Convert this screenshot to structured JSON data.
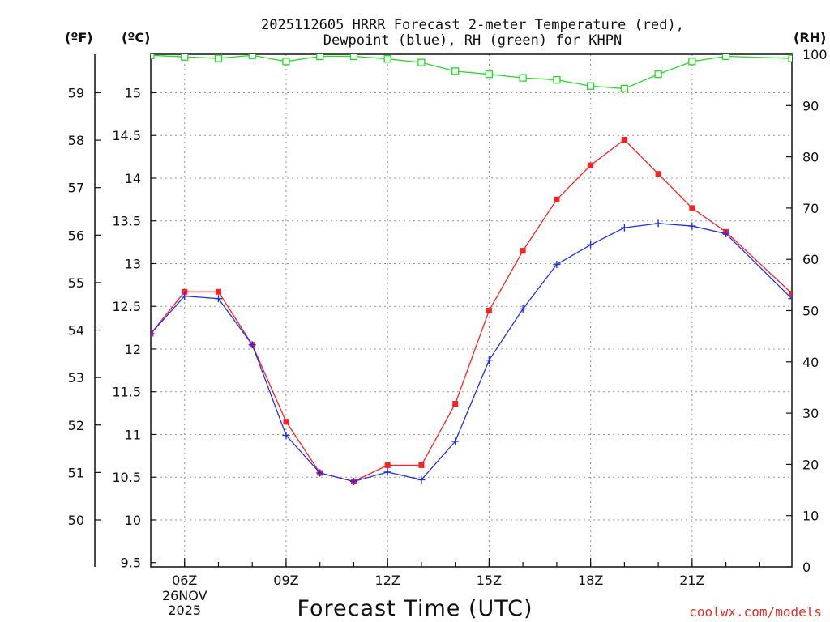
{
  "chart_data": {
    "type": "line",
    "title": [
      "2025112605 HRRR Forecast 2-meter Temperature (red),",
      "Dewpoint (blue), RH (green) for KHPN"
    ],
    "xlabel": "Forecast Time (UTC)",
    "units": {
      "left_f": "(ºF)",
      "left_c": "(ºC)",
      "right_rh": "(RH)"
    },
    "credit": "coolwx.com/models",
    "x_range": [
      5.0,
      23.95
    ],
    "x": [
      5,
      6,
      7,
      8,
      9,
      10,
      11,
      12,
      13,
      14,
      15,
      16,
      17,
      18,
      19,
      20,
      21,
      22,
      23.95
    ],
    "x_ticks": [
      {
        "hour": 6,
        "label": "06Z",
        "sub": [
          "26NOV",
          "2025"
        ]
      },
      {
        "hour": 9,
        "label": "09Z",
        "sub": []
      },
      {
        "hour": 12,
        "label": "12Z",
        "sub": []
      },
      {
        "hour": 15,
        "label": "15Z",
        "sub": []
      },
      {
        "hour": 18,
        "label": "18Z",
        "sub": []
      },
      {
        "hour": 21,
        "label": "21Z",
        "sub": []
      }
    ],
    "celsius_axis": {
      "range": [
        9.45,
        15.45
      ],
      "ticks": [
        9.5,
        10,
        10.5,
        11,
        11.5,
        12,
        12.5,
        13,
        13.5,
        14,
        14.5,
        15
      ],
      "tick_labels": [
        "9.5",
        "10",
        "10.5",
        "11",
        "11.5",
        "12",
        "12.5",
        "13",
        "13.5",
        "14",
        "14.5",
        "15"
      ]
    },
    "fahrenheit_axis": {
      "ticks": [
        50,
        51,
        52,
        53,
        54,
        55,
        56,
        57,
        58,
        59
      ],
      "tick_labels": [
        "50",
        "51",
        "52",
        "53",
        "54",
        "55",
        "56",
        "57",
        "58",
        "59"
      ]
    },
    "rh_axis": {
      "range": [
        0,
        100
      ],
      "ticks": [
        0,
        10,
        20,
        30,
        40,
        50,
        60,
        70,
        80,
        90,
        100
      ],
      "tick_labels": [
        "0",
        "10",
        "20",
        "30",
        "40",
        "50",
        "60",
        "70",
        "80",
        "90",
        "100"
      ]
    },
    "series": [
      {
        "name": "Temperature",
        "color": "#ff2020",
        "marker": "square-filled",
        "values": [
          12.18,
          12.67,
          12.67,
          12.05,
          11.15,
          10.55,
          10.45,
          10.64,
          10.64,
          11.36,
          12.45,
          13.15,
          13.75,
          14.15,
          14.45,
          14.05,
          13.65,
          13.37,
          12.65
        ]
      },
      {
        "name": "Dewpoint",
        "color": "#2030f0",
        "marker": "plus",
        "values": [
          12.18,
          12.62,
          12.59,
          12.05,
          10.99,
          10.55,
          10.45,
          10.56,
          10.47,
          10.92,
          11.87,
          12.47,
          12.99,
          13.22,
          13.42,
          13.47,
          13.44,
          13.35,
          12.59
        ]
      },
      {
        "name": "RH",
        "color": "#20dd20",
        "marker": "square-open",
        "values": [
          99.8,
          99.5,
          99.2,
          99.8,
          98.6,
          99.6,
          99.6,
          99.1,
          98.4,
          96.7,
          96.1,
          95.4,
          95.0,
          93.8,
          93.3,
          96.1,
          98.6,
          99.6,
          99.2
        ]
      }
    ]
  }
}
